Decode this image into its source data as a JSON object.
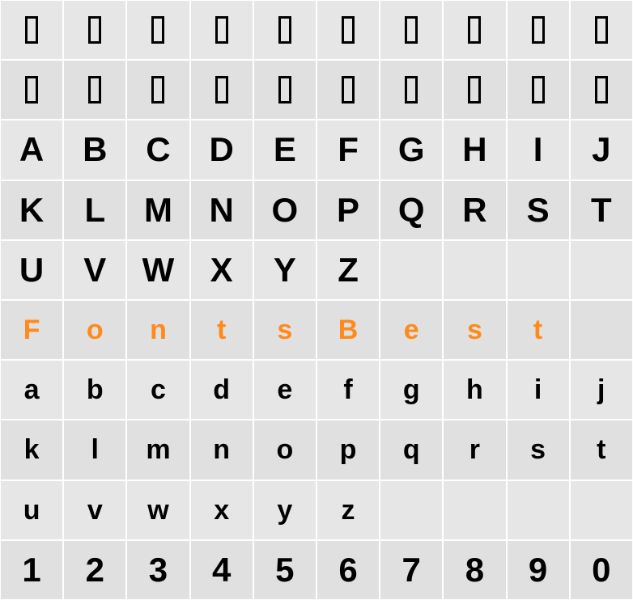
{
  "layout": {
    "cols": 10,
    "rows": 10,
    "cell_bg_even": "#e6e6e6",
    "cell_bg_odd": "#e0e0e0",
    "cell_border_color": "#ffffff"
  },
  "tofu": {
    "width": 16,
    "height": 34,
    "border_width": 3,
    "border_color": "#000000"
  },
  "glyph_style": {
    "uppercase_fontsize": 42,
    "lowercase_fontsize": 34,
    "digit_fontsize": 42,
    "font_weight": 900,
    "color_default": "#000000",
    "color_highlight": "#ff8a1a"
  },
  "rows_data": [
    {
      "type": "tofu",
      "cells": [
        "",
        "",
        "",
        "",
        "",
        "",
        "",
        "",
        "",
        ""
      ]
    },
    {
      "type": "tofu",
      "cells": [
        "",
        "",
        "",
        "",
        "",
        "",
        "",
        "",
        "",
        ""
      ]
    },
    {
      "type": "upper",
      "cells": [
        "A",
        "B",
        "C",
        "D",
        "E",
        "F",
        "G",
        "H",
        "I",
        "J"
      ]
    },
    {
      "type": "upper",
      "cells": [
        "K",
        "L",
        "M",
        "N",
        "O",
        "P",
        "Q",
        "R",
        "S",
        "T"
      ]
    },
    {
      "type": "upper",
      "cells": [
        "U",
        "V",
        "W",
        "X",
        "Y",
        "Z",
        "",
        "",
        "",
        ""
      ]
    },
    {
      "type": "highlight_lower",
      "cells": [
        "F",
        "o",
        "n",
        "t",
        "s",
        "B",
        "e",
        "s",
        "t",
        ""
      ]
    },
    {
      "type": "lower",
      "cells": [
        "a",
        "b",
        "c",
        "d",
        "e",
        "f",
        "g",
        "h",
        "i",
        "j"
      ]
    },
    {
      "type": "lower",
      "cells": [
        "k",
        "l",
        "m",
        "n",
        "o",
        "p",
        "q",
        "r",
        "s",
        "t"
      ]
    },
    {
      "type": "lower",
      "cells": [
        "u",
        "v",
        "w",
        "x",
        "y",
        "z",
        "",
        "",
        "",
        ""
      ]
    },
    {
      "type": "digit",
      "cells": [
        "1",
        "2",
        "3",
        "4",
        "5",
        "6",
        "7",
        "8",
        "9",
        "0"
      ]
    }
  ]
}
